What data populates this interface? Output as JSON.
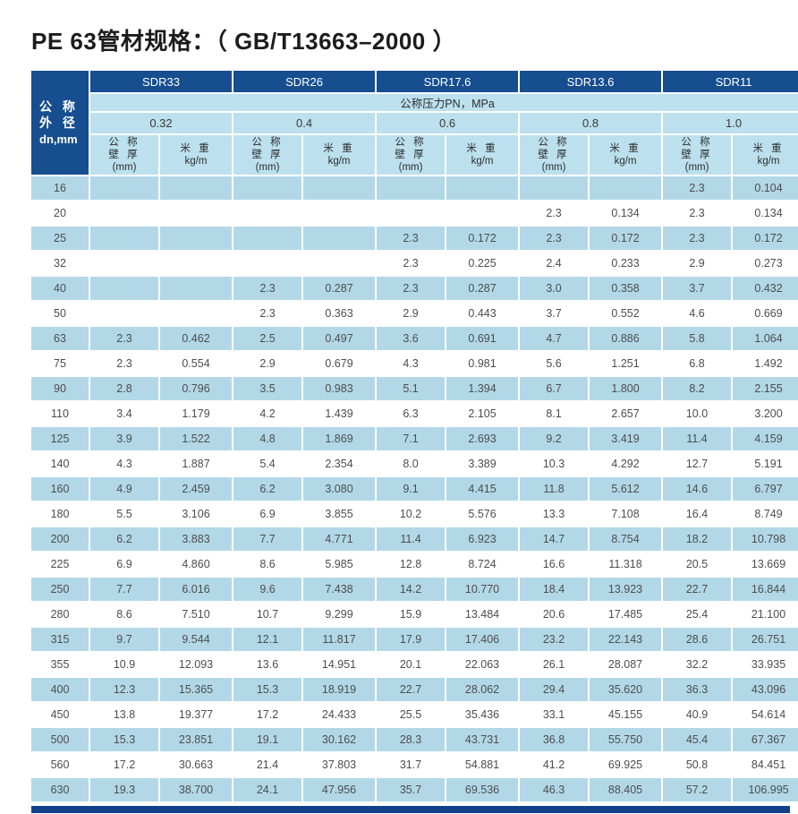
{
  "title": "PE 63管材规格：（ GB/T13663–2000 ）",
  "table": {
    "corner": {
      "line1": "公 称",
      "line2": "外 径",
      "line3": "dn,mm"
    },
    "sdr_headers": [
      "SDR33",
      "SDR26",
      "SDR17.6",
      "SDR13.6",
      "SDR11"
    ],
    "pn_label": "公称压力PN，MPa",
    "pressures": [
      "0.32",
      "0.4",
      "0.6",
      "0.8",
      "1.0"
    ],
    "sub": {
      "wall_lines": [
        "公 称",
        "壁 厚",
        "(mm)"
      ],
      "weight_lines": [
        "米 重",
        "kg/m"
      ]
    },
    "rows": [
      {
        "dn": "16",
        "cells": [
          "",
          "",
          "",
          "",
          "",
          "",
          "",
          "",
          "2.3",
          "0.104"
        ]
      },
      {
        "dn": "20",
        "cells": [
          "",
          "",
          "",
          "",
          "",
          "",
          "2.3",
          "0.134",
          "2.3",
          "0.134"
        ]
      },
      {
        "dn": "25",
        "cells": [
          "",
          "",
          "",
          "",
          "2.3",
          "0.172",
          "2.3",
          "0.172",
          "2.3",
          "0.172"
        ]
      },
      {
        "dn": "32",
        "cells": [
          "",
          "",
          "",
          "",
          "2.3",
          "0.225",
          "2.4",
          "0.233",
          "2.9",
          "0.273"
        ]
      },
      {
        "dn": "40",
        "cells": [
          "",
          "",
          "2.3",
          "0.287",
          "2.3",
          "0.287",
          "3.0",
          "0.358",
          "3.7",
          "0.432"
        ]
      },
      {
        "dn": "50",
        "cells": [
          "",
          "",
          "2.3",
          "0.363",
          "2.9",
          "0.443",
          "3.7",
          "0.552",
          "4.6",
          "0.669"
        ]
      },
      {
        "dn": "63",
        "cells": [
          "2.3",
          "0.462",
          "2.5",
          "0.497",
          "3.6",
          "0.691",
          "4.7",
          "0.886",
          "5.8",
          "1.064"
        ]
      },
      {
        "dn": "75",
        "cells": [
          "2.3",
          "0.554",
          "2.9",
          "0.679",
          "4.3",
          "0.981",
          "5.6",
          "1.251",
          "6.8",
          "1.492"
        ]
      },
      {
        "dn": "90",
        "cells": [
          "2.8",
          "0.796",
          "3.5",
          "0.983",
          "5.1",
          "1.394",
          "6.7",
          "1.800",
          "8.2",
          "2.155"
        ]
      },
      {
        "dn": "110",
        "cells": [
          "3.4",
          "1.179",
          "4.2",
          "1.439",
          "6.3",
          "2.105",
          "8.1",
          "2.657",
          "10.0",
          "3.200"
        ]
      },
      {
        "dn": "125",
        "cells": [
          "3.9",
          "1.522",
          "4.8",
          "1.869",
          "7.1",
          "2.693",
          "9.2",
          "3.419",
          "11.4",
          "4.159"
        ]
      },
      {
        "dn": "140",
        "cells": [
          "4.3",
          "1.887",
          "5.4",
          "2.354",
          "8.0",
          "3.389",
          "10.3",
          "4.292",
          "12.7",
          "5.191"
        ]
      },
      {
        "dn": "160",
        "cells": [
          "4.9",
          "2.459",
          "6.2",
          "3.080",
          "9.1",
          "4.415",
          "11.8",
          "5.612",
          "14.6",
          "6.797"
        ]
      },
      {
        "dn": "180",
        "cells": [
          "5.5",
          "3.106",
          "6.9",
          "3.855",
          "10.2",
          "5.576",
          "13.3",
          "7.108",
          "16.4",
          "8.749"
        ]
      },
      {
        "dn": "200",
        "cells": [
          "6.2",
          "3.883",
          "7.7",
          "4.771",
          "11.4",
          "6.923",
          "14.7",
          "8.754",
          "18.2",
          "10.798"
        ]
      },
      {
        "dn": "225",
        "cells": [
          "6.9",
          "4.860",
          "8.6",
          "5.985",
          "12.8",
          "8.724",
          "16.6",
          "11.318",
          "20.5",
          "13.669"
        ]
      },
      {
        "dn": "250",
        "cells": [
          "7.7",
          "6.016",
          "9.6",
          "7.438",
          "14.2",
          "10.770",
          "18.4",
          "13.923",
          "22.7",
          "16.844"
        ]
      },
      {
        "dn": "280",
        "cells": [
          "8.6",
          "7.510",
          "10.7",
          "9.299",
          "15.9",
          "13.484",
          "20.6",
          "17.485",
          "25.4",
          "21.100"
        ]
      },
      {
        "dn": "315",
        "cells": [
          "9.7",
          "9.544",
          "12.1",
          "11.817",
          "17.9",
          "17.406",
          "23.2",
          "22.143",
          "28.6",
          "26.751"
        ]
      },
      {
        "dn": "355",
        "cells": [
          "10.9",
          "12.093",
          "13.6",
          "14.951",
          "20.1",
          "22.063",
          "26.1",
          "28.087",
          "32.2",
          "33.935"
        ]
      },
      {
        "dn": "400",
        "cells": [
          "12.3",
          "15.365",
          "15.3",
          "18.919",
          "22.7",
          "28.062",
          "29.4",
          "35.620",
          "36.3",
          "43.096"
        ]
      },
      {
        "dn": "450",
        "cells": [
          "13.8",
          "19.377",
          "17.2",
          "24.433",
          "25.5",
          "35.436",
          "33.1",
          "45.155",
          "40.9",
          "54.614"
        ]
      },
      {
        "dn": "500",
        "cells": [
          "15.3",
          "23.851",
          "19.1",
          "30.162",
          "28.3",
          "43.731",
          "36.8",
          "55.750",
          "45.4",
          "67.367"
        ]
      },
      {
        "dn": "560",
        "cells": [
          "17.2",
          "30.663",
          "21.4",
          "37.803",
          "31.7",
          "54.881",
          "41.2",
          "69.925",
          "50.8",
          "84.451"
        ]
      },
      {
        "dn": "630",
        "cells": [
          "19.3",
          "38.700",
          "24.1",
          "47.956",
          "35.7",
          "69.536",
          "46.3",
          "88.405",
          "57.2",
          "106.995"
        ]
      }
    ]
  },
  "colors": {
    "header_dark_blue": "#164e8f",
    "header_light_blue": "#bce0ee",
    "row_stripe_blue": "#b2d8e8",
    "bottom_bar_blue": "#11418a",
    "text_dark": "#4d4d4d"
  }
}
